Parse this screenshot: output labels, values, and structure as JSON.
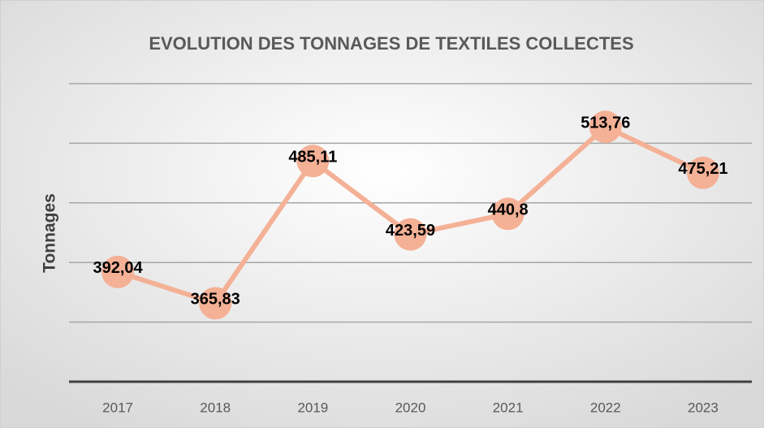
{
  "chart_data": {
    "type": "line",
    "title": "EVOLUTION DES TONNAGES DE TEXTILES COLLECTES",
    "y_label": "Tonnages",
    "categories": [
      "2017",
      "2018",
      "2019",
      "2020",
      "2021",
      "2022",
      "2023"
    ],
    "series": [
      {
        "name": "Tonnages",
        "color": "#f4b196",
        "values": [
          392.04,
          365.83,
          485.11,
          423.59,
          440.8,
          513.76,
          475.21
        ],
        "value_labels": [
          "392,04",
          "365,83",
          "485,11",
          "423,59",
          "440,8",
          "513,76",
          "475,21"
        ]
      }
    ],
    "ylim": [
      300,
      550
    ],
    "yticks": [
      300,
      350,
      400,
      450,
      500,
      550
    ],
    "grid": true
  }
}
